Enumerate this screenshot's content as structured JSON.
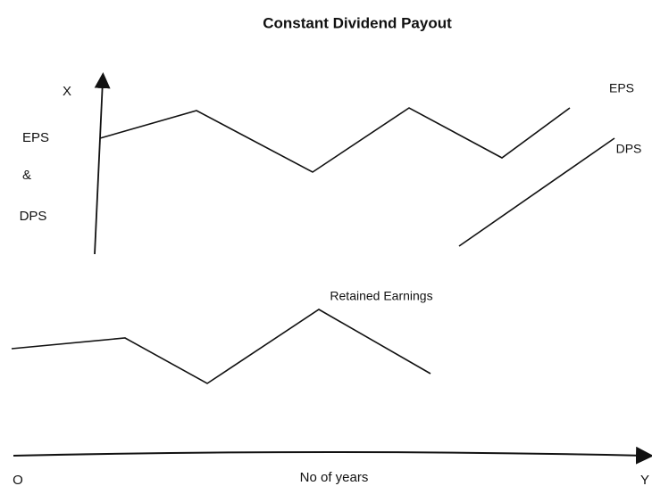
{
  "title": "Constant Dividend Payout",
  "y_axis": {
    "end": "X",
    "labels": [
      "EPS",
      "&",
      "DPS"
    ]
  },
  "lines": [
    {
      "label": "EPS"
    },
    {
      "label": "DPS"
    },
    {
      "label": "Retained Earnings"
    }
  ],
  "x_axis": {
    "origin": "O",
    "label": "No of years",
    "end": "Y"
  }
}
